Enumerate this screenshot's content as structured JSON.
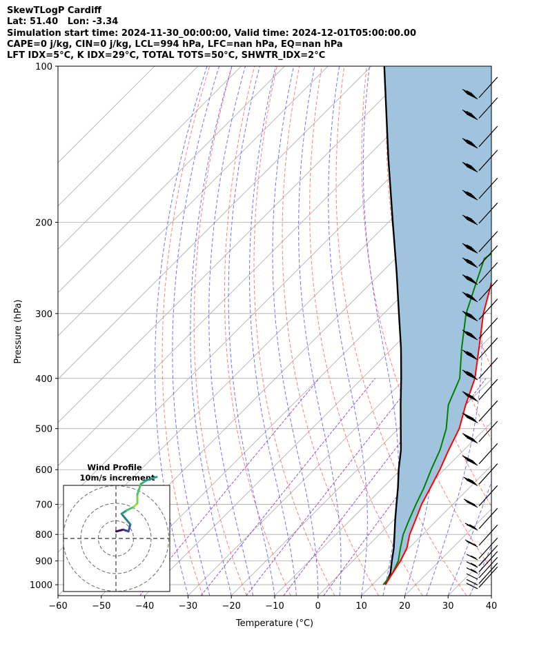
{
  "header": {
    "line1": "SkewTLogP Cardiff",
    "line2": "Lat: 51.40   Lon: -3.34",
    "line3": "Simulation start time: 2024-11-30_00:00:00, Valid time: 2024-12-01T05:00:00.00",
    "line4": "CAPE=0 j/kg, CIN=0 j/kg, LCL=994 hPa, LFC=nan hPa, EQ=nan hPa",
    "line5": "LFT IDX=5°C, K IDX=29°C, TOTAL TOTS=50°C, SHWTR_IDX=2°C"
  },
  "chart_data": [
    {
      "type": "line",
      "subtype": "skew-t log-p",
      "xlabel": "Temperature (°C)",
      "ylabel": "Pressure (hPa)",
      "xlim": [
        -60,
        40
      ],
      "ylim": [
        1050,
        100
      ],
      "y_scale": "log",
      "grid": true,
      "x_ticks": [
        "−60",
        "−50",
        "−40",
        "−30",
        "−20",
        "−10",
        "0",
        "10",
        "20",
        "30",
        "40"
      ],
      "y_ticks": [
        "100",
        "200",
        "300",
        "400",
        "500",
        "600",
        "700",
        "800",
        "900",
        "1000"
      ],
      "colors": {
        "temperature": "#ff0000",
        "dewpoint": "#008000",
        "parcel": "#000000",
        "cape_fill": "#a0c4de",
        "dry_adiabat": "#ff6666",
        "moist_adiabat": "#4c4cff",
        "mixing_ratio": "#8b3fbf",
        "isotherm": "#aaaaaa"
      },
      "series": [
        {
          "key": "temperature",
          "points": [
            [
              1000,
              13.0
            ],
            [
              950,
              12.0
            ],
            [
              900,
              11.0
            ],
            [
              850,
              9.5
            ],
            [
              800,
              7.0
            ],
            [
              750,
              5.0
            ],
            [
              700,
              2.8
            ],
            [
              650,
              1.0
            ],
            [
              600,
              -1.0
            ],
            [
              550,
              -3.5
            ],
            [
              500,
              -6.0
            ],
            [
              450,
              -10.0
            ],
            [
              400,
              -14.0
            ],
            [
              350,
              -20.0
            ],
            [
              300,
              -27.0
            ],
            [
              260,
              -32.5
            ],
            [
              240,
              -35.5
            ],
            [
              235,
              -36.5
            ],
            [
              220,
              -32.0
            ],
            [
              200,
              -25.0
            ],
            [
              180,
              -19.0
            ],
            [
              160,
              -15.5
            ],
            [
              150,
              -13.0
            ],
            [
              130,
              -10.0
            ],
            [
              110,
              -6.5
            ],
            [
              100,
              -4.0
            ]
          ]
        },
        {
          "key": "dewpoint",
          "points": [
            [
              1000,
              12.5
            ],
            [
              950,
              12.0
            ],
            [
              900,
              10.5
            ],
            [
              850,
              8.0
            ],
            [
              800,
              5.5
            ],
            [
              750,
              3.5
            ],
            [
              700,
              1.5
            ],
            [
              650,
              -0.5
            ],
            [
              600,
              -3.0
            ],
            [
              550,
              -5.5
            ],
            [
              500,
              -9.0
            ],
            [
              450,
              -14.0
            ],
            [
              400,
              -17.5
            ],
            [
              350,
              -24.0
            ],
            [
              300,
              -31.0
            ],
            [
              260,
              -36.0
            ],
            [
              235,
              -39.5
            ],
            [
              220,
              -38.0
            ],
            [
              205,
              -35.5
            ],
            [
              185,
              -36.0
            ],
            [
              170,
              -38.0
            ],
            [
              155,
              -38.0
            ],
            [
              140,
              -37.0
            ],
            [
              120,
              -35.5
            ],
            [
              100,
              -32.0
            ]
          ]
        },
        {
          "key": "parcel",
          "points": [
            [
              1000,
              13.0
            ],
            [
              950,
              11.5
            ],
            [
              900,
              9.0
            ],
            [
              850,
              6.5
            ],
            [
              800,
              3.5
            ],
            [
              750,
              0.3
            ],
            [
              700,
              -3.0
            ],
            [
              650,
              -6.5
            ],
            [
              600,
              -10.5
            ],
            [
              550,
              -14.5
            ],
            [
              500,
              -19.5
            ],
            [
              450,
              -25.0
            ],
            [
              400,
              -31.0
            ],
            [
              350,
              -38.0
            ],
            [
              300,
              -46.5
            ],
            [
              250,
              -56.5
            ],
            [
              200,
              -69.0
            ],
            [
              150,
              -85.0
            ],
            [
              100,
              -107.0
            ]
          ]
        }
      ],
      "wind_barbs": {
        "pressures": [
          1012,
          995,
          970,
          945,
          920,
          890,
          840,
          780,
          705,
          640,
          585,
          530,
          484,
          440,
          400,
          366,
          335,
          308,
          283,
          262,
          243,
          228,
          201,
          180,
          159,
          143,
          126,
          115
        ],
        "speeds_kt": [
          10,
          10,
          10,
          15,
          15,
          15,
          20,
          25,
          30,
          35,
          40,
          40,
          40,
          40,
          45,
          45,
          45,
          45,
          45,
          45,
          45,
          45,
          45,
          45,
          45,
          45,
          45,
          45
        ]
      },
      "hodograph": {
        "title": "Wind Profile",
        "subtitle": "10m/s increment",
        "rings_ms": [
          10,
          20,
          30
        ],
        "trace": [
          [
            8,
            4
          ],
          [
            12,
            5
          ],
          [
            15,
            4
          ],
          [
            16,
            8
          ],
          [
            11,
            14
          ],
          [
            14,
            16
          ],
          [
            18,
            18
          ],
          [
            20,
            20
          ],
          [
            20,
            25
          ],
          [
            22,
            31
          ],
          [
            25,
            33
          ],
          [
            28,
            34
          ],
          [
            31,
            35
          ]
        ]
      }
    }
  ]
}
